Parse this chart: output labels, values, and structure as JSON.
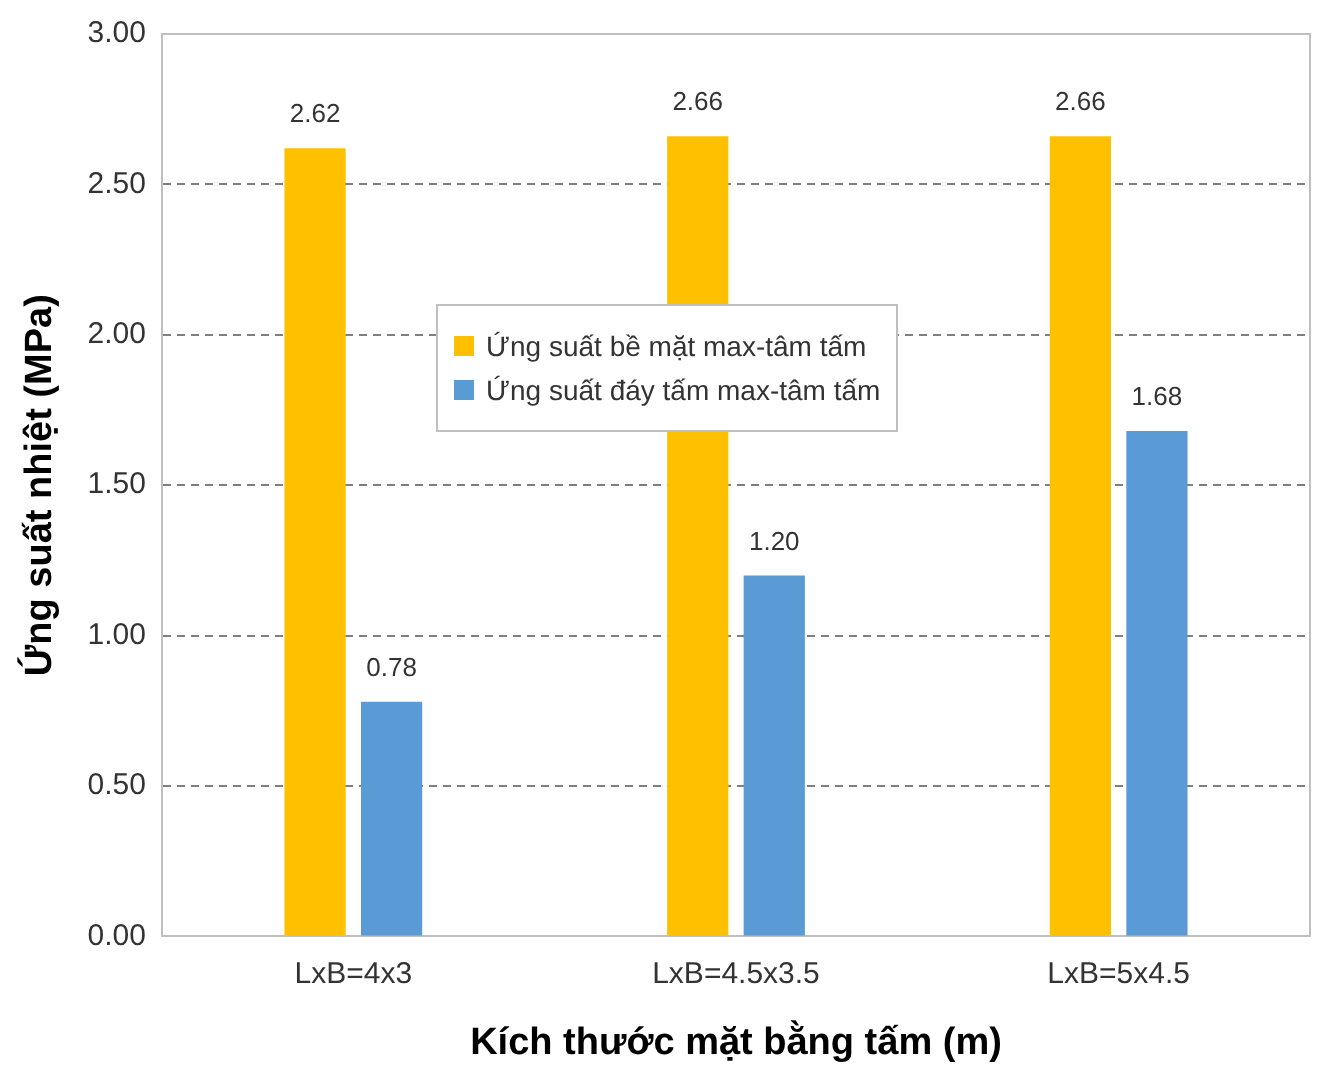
{
  "chart_data": {
    "type": "bar",
    "xlabel": "Kích thước mặt bằng tấm (m)",
    "ylabel": "Ứng suất nhiệt (MPa)",
    "categories": [
      "LxB=4x3",
      "LxB=4.5x3.5",
      "LxB=5x4.5"
    ],
    "series": [
      {
        "name": "Ứng suất bề mặt max-tâm tấm",
        "color": "#ffc000",
        "values": [
          2.62,
          2.66,
          2.66
        ],
        "value_labels": [
          "2.62",
          "2.66",
          "2.66"
        ]
      },
      {
        "name": "Ứng suất đáy tấm max-tâm tấm",
        "color": "#5b9bd5",
        "values": [
          0.78,
          1.2,
          1.68
        ],
        "value_labels": [
          "0.78",
          "1.20",
          "1.68"
        ]
      }
    ],
    "ylim": [
      0,
      3
    ],
    "yticks": [
      {
        "value": 0,
        "label": "0.00"
      },
      {
        "value": 0.5,
        "label": "0.50"
      },
      {
        "value": 1,
        "label": "1.00"
      },
      {
        "value": 1.5,
        "label": "1.50"
      },
      {
        "value": 2,
        "label": "2.00"
      },
      {
        "value": 2.5,
        "label": "2.50"
      },
      {
        "value": 3,
        "label": "3.00"
      }
    ],
    "grid": "y",
    "legend": "center"
  }
}
